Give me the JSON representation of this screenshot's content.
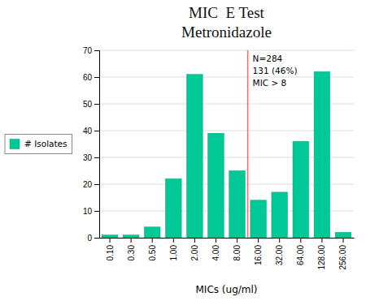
{
  "chart_data": {
    "type": "bar",
    "title": "MIC  E Test",
    "subtitle": "Metronidazole",
    "x_label": "MICs (ug/ml)",
    "categories": [
      "0.10",
      "0.30",
      "0.50",
      "1.00",
      "2.00",
      "4.00",
      "8.00",
      "16.00",
      "32.00",
      "64.00",
      "128.00",
      "256.00"
    ],
    "series": [
      {
        "name": "# Isolates",
        "color": "#00C896",
        "values": [
          1,
          1,
          4,
          22,
          61,
          39,
          25,
          14,
          17,
          36,
          62,
          2
        ]
      }
    ],
    "ylim": [
      0,
      70
    ],
    "yticks": [
      0,
      10,
      20,
      30,
      40,
      50,
      60,
      70
    ],
    "grid": true,
    "legend": "left",
    "reference_line": {
      "x": 6.5,
      "color": "#FF6666"
    },
    "annotations": [
      "N=284",
      "131 (46%)",
      "MIC > 8"
    ]
  }
}
